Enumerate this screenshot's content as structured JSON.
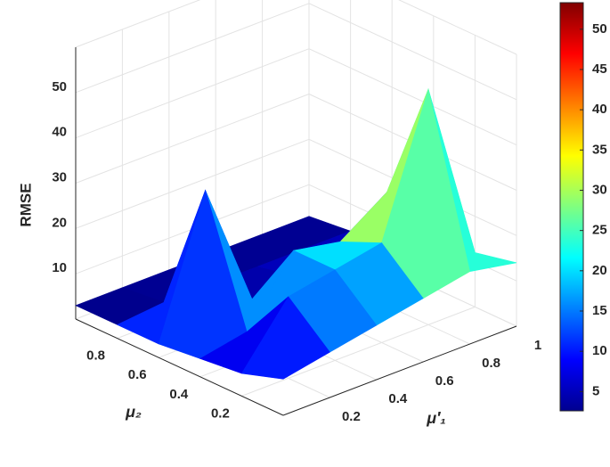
{
  "chart_data": {
    "type": "surface",
    "xlabel": "μ′₁",
    "ylabel": "μ₂",
    "zlabel": "RMSE",
    "x": [
      0,
      0.2,
      0.4,
      0.6,
      0.8,
      1
    ],
    "y": [
      0,
      0.2,
      0.4,
      0.6,
      0.8,
      1
    ],
    "z": [
      [
        8,
        10,
        12,
        14,
        16,
        14
      ],
      [
        5,
        18,
        20,
        22,
        52,
        12
      ],
      [
        4,
        6,
        20,
        18,
        25,
        10
      ],
      [
        3,
        33,
        5,
        6,
        8,
        6
      ],
      [
        3,
        4,
        4,
        4,
        4,
        4
      ],
      [
        3,
        3,
        3,
        3,
        3,
        3
      ]
    ],
    "xlim": [
      0,
      1
    ],
    "ylim": [
      0,
      1
    ],
    "zlim": [
      0,
      60
    ],
    "xticks": [
      0.2,
      0.4,
      0.6,
      0.8,
      1
    ],
    "yticks": [
      0.2,
      0.4,
      0.6,
      0.8
    ],
    "zticks": [
      10,
      20,
      30,
      40,
      50
    ],
    "clim": [
      2.6,
      53.3
    ],
    "cticks": [
      5,
      10,
      15,
      20,
      25,
      30,
      35,
      40,
      45,
      50
    ],
    "colormap": "jet",
    "grid": true
  }
}
